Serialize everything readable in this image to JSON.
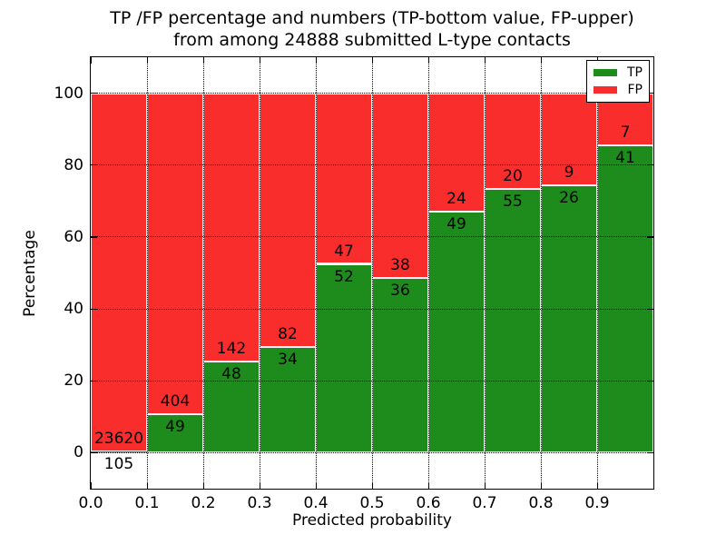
{
  "title": {
    "line1": "TP /FP percentage and numbers (TP-bottom value, FP-upper)",
    "line2": "from among 24888 submitted L-type contacts"
  },
  "axes": {
    "x_label": "Predicted probability",
    "y_label": "Percentage",
    "x_tick_labels": [
      "0.0",
      "0.1",
      "0.2",
      "0.3",
      "0.4",
      "0.5",
      "0.6",
      "0.7",
      "0.8",
      "0.9"
    ],
    "y_tick_labels": [
      "0",
      "20",
      "40",
      "60",
      "80",
      "100"
    ]
  },
  "legend": {
    "entries": [
      {
        "label": "TP",
        "color": "#1d8c1d"
      },
      {
        "label": "FP",
        "color": "#fa2d2d"
      }
    ]
  },
  "chart_data": {
    "type": "bar",
    "stacked": true,
    "normalized_to_percent": true,
    "title": "TP /FP percentage and numbers (TP-bottom value, FP-upper) from among 24888 submitted L-type contacts",
    "xlabel": "Predicted probability",
    "ylabel": "Percentage",
    "total_contacts": 24888,
    "bin_edges": [
      0.0,
      0.1,
      0.2,
      0.3,
      0.4,
      0.5,
      0.6,
      0.7,
      0.8,
      0.9,
      1.0
    ],
    "categories": [
      "0.0-0.1",
      "0.1-0.2",
      "0.2-0.3",
      "0.3-0.4",
      "0.4-0.5",
      "0.5-0.6",
      "0.6-0.7",
      "0.7-0.8",
      "0.8-0.9",
      "0.9-1.0"
    ],
    "series": [
      {
        "name": "TP",
        "color": "#1d8c1d",
        "counts": [
          105,
          49,
          48,
          34,
          52,
          36,
          49,
          55,
          26,
          41
        ]
      },
      {
        "name": "FP",
        "color": "#fa2d2d",
        "counts": [
          23620,
          404,
          142,
          82,
          47,
          38,
          24,
          20,
          9,
          7
        ]
      }
    ],
    "tp_percent_heights": [
      0.44,
      10.82,
      25.26,
      29.31,
      52.53,
      48.65,
      67.12,
      73.33,
      74.29,
      85.42
    ],
    "xlim": [
      0.0,
      1.0
    ],
    "ylim": [
      -10,
      110
    ],
    "x_ticks": [
      0.0,
      0.1,
      0.2,
      0.3,
      0.4,
      0.5,
      0.6,
      0.7,
      0.8,
      0.9
    ],
    "y_ticks": [
      0,
      20,
      40,
      60,
      80,
      100
    ],
    "grid": "dotted",
    "legend_position": "upper right"
  }
}
